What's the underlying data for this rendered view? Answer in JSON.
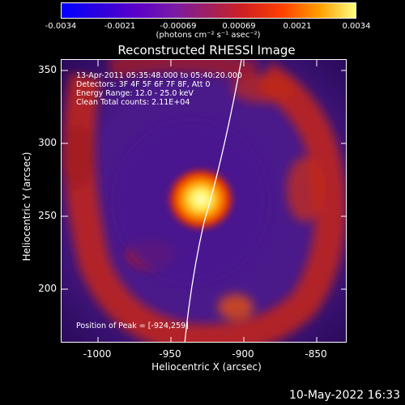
{
  "colorbar": {
    "ticks": [
      "-0.0034",
      "-0.0021",
      "-0.00069",
      "0.00069",
      "0.0021",
      "0.0034"
    ],
    "unit": "(photons cm⁻² s⁻¹ asec⁻²)"
  },
  "title": "Reconstructed RHESSI Image",
  "info": {
    "time": "13-Apr-2011 05:35:48.000 to 05:40:20.000",
    "detectors": "Detectors: 3F 4F 5F 6F 7F 8F, Att 0",
    "energy": "Energy Range: 12.0 - 25.0 keV",
    "clean": "Clean     Total counts: 2.11E+04",
    "peak": "Position of Peak = [-924,259]"
  },
  "axes": {
    "xlabel": "Heliocentric X (arcsec)",
    "ylabel": "Heliocentric Y (arcsec)",
    "xticks": [
      "-1000",
      "-950",
      "-900",
      "-850"
    ],
    "yticks": [
      "350",
      "300",
      "250",
      "200"
    ]
  },
  "footer": "10-May-2022 16:33"
}
